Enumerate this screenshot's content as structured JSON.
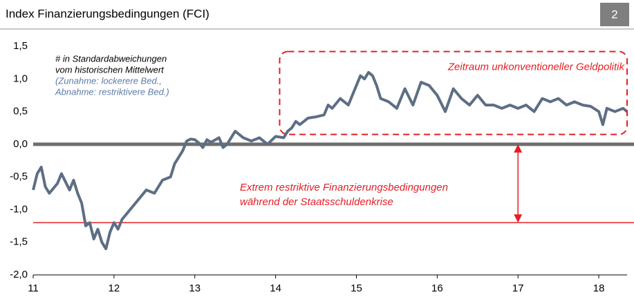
{
  "header": {
    "title": "Index Finanzierungsbedingungen (FCI)",
    "page": "2"
  },
  "chart_data": {
    "type": "line",
    "x": [
      11.0,
      11.05,
      11.1,
      11.15,
      11.2,
      11.3,
      11.35,
      11.45,
      11.5,
      11.55,
      11.6,
      11.65,
      11.7,
      11.75,
      11.8,
      11.85,
      11.9,
      11.95,
      12.0,
      12.05,
      12.1,
      12.2,
      12.3,
      12.4,
      12.5,
      12.6,
      12.7,
      12.75,
      12.8,
      12.85,
      12.9,
      12.95,
      13.0,
      13.05,
      13.1,
      13.15,
      13.2,
      13.3,
      13.35,
      13.4,
      13.5,
      13.6,
      13.7,
      13.8,
      13.9,
      14.0,
      14.1,
      14.15,
      14.2,
      14.25,
      14.3,
      14.4,
      14.5,
      14.6,
      14.65,
      14.7,
      14.8,
      14.9,
      15.0,
      15.05,
      15.1,
      15.15,
      15.2,
      15.25,
      15.3,
      15.4,
      15.5,
      15.6,
      15.7,
      15.8,
      15.9,
      16.0,
      16.1,
      16.2,
      16.3,
      16.4,
      16.5,
      16.6,
      16.7,
      16.8,
      16.9,
      17.0,
      17.1,
      17.2,
      17.3,
      17.4,
      17.5,
      17.6,
      17.7,
      17.8,
      17.9,
      18.0,
      18.05,
      18.1,
      18.2,
      18.3,
      18.35
    ],
    "series": [
      {
        "name": "FCI",
        "color": "#5d6e84",
        "values": [
          -0.7,
          -0.45,
          -0.35,
          -0.65,
          -0.75,
          -0.6,
          -0.45,
          -0.7,
          -0.55,
          -0.75,
          -0.9,
          -1.25,
          -1.2,
          -1.45,
          -1.3,
          -1.5,
          -1.6,
          -1.35,
          -1.2,
          -1.3,
          -1.15,
          -1.0,
          -0.85,
          -0.7,
          -0.75,
          -0.55,
          -0.5,
          -0.3,
          -0.2,
          -0.1,
          0.05,
          0.08,
          0.07,
          0.02,
          -0.05,
          0.07,
          0.03,
          0.1,
          -0.05,
          0.0,
          0.2,
          0.1,
          0.05,
          0.1,
          0.0,
          0.12,
          0.1,
          0.2,
          0.25,
          0.35,
          0.3,
          0.4,
          0.42,
          0.45,
          0.6,
          0.55,
          0.7,
          0.6,
          0.9,
          1.05,
          1.0,
          1.1,
          1.05,
          0.9,
          0.7,
          0.65,
          0.55,
          0.85,
          0.6,
          0.95,
          0.9,
          0.75,
          0.5,
          0.85,
          0.7,
          0.6,
          0.75,
          0.6,
          0.6,
          0.55,
          0.6,
          0.55,
          0.6,
          0.5,
          0.7,
          0.65,
          0.7,
          0.6,
          0.65,
          0.6,
          0.58,
          0.5,
          0.3,
          0.55,
          0.5,
          0.55,
          0.5
        ]
      }
    ],
    "xlim": [
      11,
      18.35
    ],
    "xticks": [
      11,
      12,
      13,
      14,
      15,
      16,
      17,
      18
    ],
    "ylim": [
      -2,
      1.5
    ],
    "yticks": [
      {
        "value": -2,
        "label": "-2,0"
      },
      {
        "value": -1.5,
        "label": "-1,5"
      },
      {
        "value": -1,
        "label": "-1,0"
      },
      {
        "value": -0.5,
        "label": "-0,5"
      },
      {
        "value": 0,
        "label": "0,0"
      },
      {
        "value": 0.5,
        "label": "0,5"
      },
      {
        "value": 1,
        "label": "1,0"
      },
      {
        "value": 1.5,
        "label": "1,5"
      }
    ],
    "note": [
      "# in Standardabweichungen",
      "vom historischen Mittelwert",
      "(Zunahme: lockerere Bed.,",
      "Abnahme: restriktivere Bed.)"
    ],
    "highlight": {
      "x": [
        14.05,
        18.35
      ],
      "y": [
        0.15,
        1.42
      ],
      "label": "Zeitraum unkonventioneller Geldpolitik",
      "color": "#e31e24"
    },
    "reference_line": {
      "value": -1.2,
      "color": "#e31e24"
    },
    "arrow": {
      "x": 17.0,
      "y": [
        0,
        -1.2
      ],
      "label": [
        "Extrem restriktive Finanzierungsbedingungen",
        "während der Staatsschuldenkrise"
      ]
    }
  }
}
